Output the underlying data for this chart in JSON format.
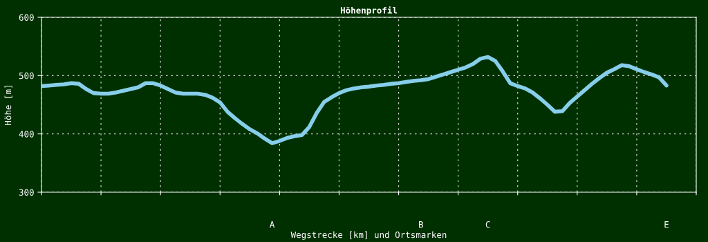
{
  "chart_data": {
    "type": "line",
    "title": "Höhenprofil",
    "xlabel": "Wegstrecke [km] und Ortsmarken",
    "ylabel": "Höhe [m]",
    "ylim": [
      300,
      600
    ],
    "yticks": [
      300,
      400,
      500,
      600
    ],
    "categories": [
      null,
      null,
      null,
      null,
      null,
      null,
      null,
      null,
      null,
      null,
      null,
      null,
      null,
      null,
      null,
      null,
      null,
      null,
      null,
      null,
      null,
      null,
      null,
      null,
      null,
      null,
      null,
      null,
      null,
      null,
      null,
      "A",
      null,
      null,
      null,
      null,
      null,
      null,
      null,
      null,
      null,
      null,
      null,
      null,
      null,
      null,
      null,
      null,
      null,
      null,
      null,
      "B",
      null,
      null,
      null,
      null,
      null,
      null,
      null,
      null,
      "C",
      null,
      null,
      null,
      null,
      null,
      null,
      null,
      null,
      null,
      null,
      null,
      null,
      null,
      null,
      null,
      null,
      null,
      null,
      null,
      null,
      null,
      null,
      null,
      "E",
      null,
      null,
      null,
      null
    ],
    "grid": true,
    "marker": "none",
    "line_style": "solid",
    "series": [
      {
        "color": "#87ceeb",
        "values": [
          482,
          483,
          484,
          485,
          487,
          486,
          477,
          470,
          469,
          469,
          471,
          474,
          477,
          480,
          487,
          487,
          483,
          477,
          471,
          469,
          469,
          469,
          467,
          462,
          454,
          438,
          427,
          417,
          408,
          401,
          392,
          384,
          388,
          393,
          396,
          398,
          412,
          436,
          455,
          463,
          470,
          475,
          478,
          480,
          481,
          483,
          484,
          486,
          487,
          489,
          491,
          492,
          494,
          498,
          502,
          506,
          510,
          514,
          520,
          529,
          532,
          525,
          507,
          487,
          482,
          478,
          471,
          461,
          450,
          438,
          439,
          453,
          464,
          475,
          486,
          496,
          505,
          511,
          518,
          516,
          511,
          506,
          502,
          497,
          483,
          null,
          null,
          null,
          null
        ]
      }
    ]
  }
}
